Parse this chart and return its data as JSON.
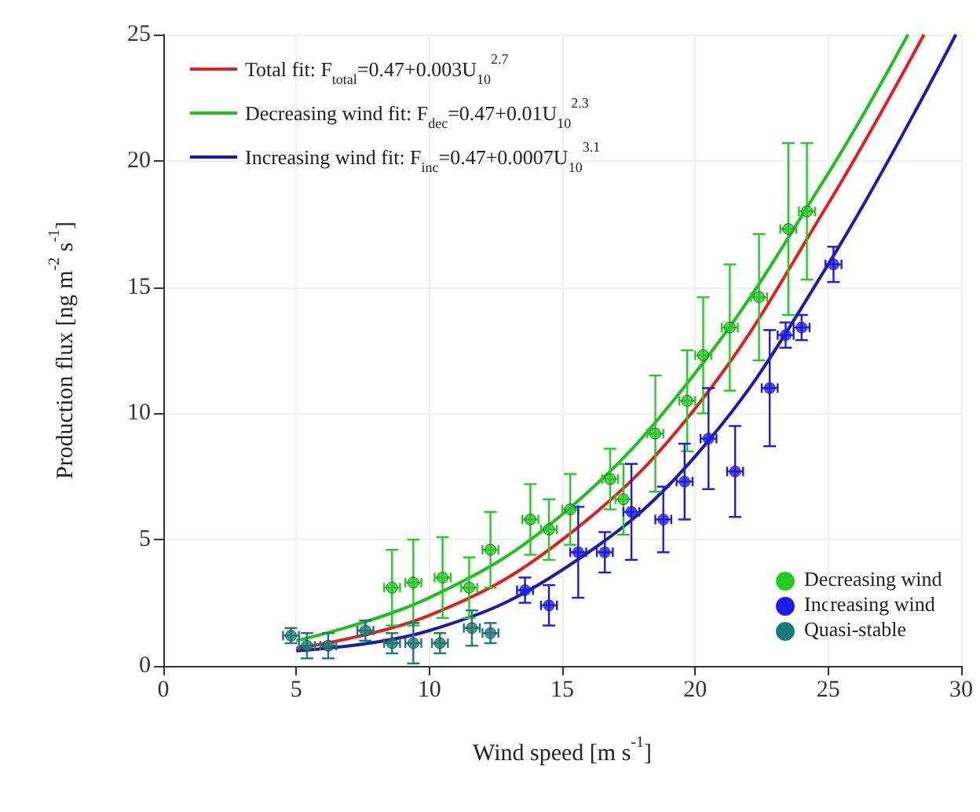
{
  "chart_data": {
    "type": "scatter",
    "xlabel": "Wind speed [m s$^{-1}$]",
    "ylabel": "Production flux [ng m$^{-2}$ s$^{-1}$]",
    "xlim": [
      0,
      30
    ],
    "xticks": [
      0,
      5,
      10,
      15,
      20,
      25,
      30
    ],
    "ylim": [
      0,
      25
    ],
    "yticks": [
      0,
      5,
      10,
      15,
      20,
      25
    ],
    "grid": true,
    "legend": "top left",
    "marker": "circle",
    "series": [
      {
        "name": "Total fit: F$_{total}$=0.47+0.003U$_{10}$$^{2.7}$",
        "type": "line",
        "marker": "none",
        "color": "#e02020",
        "x": [
          5,
          10,
          15,
          20,
          25,
          28.6
        ],
        "values": [
          0.7,
          2.0,
          5.0,
          10.2,
          18.3,
          25
        ]
      },
      {
        "name": "Decreasing wind fit: F$_{dec}$=0.47+0.01U$_{10}$$^{2.3}$",
        "type": "line",
        "marker": "none",
        "color": "#1fbf1f",
        "x": [
          5,
          10,
          15,
          20,
          25,
          28
        ],
        "values": [
          1.0,
          2.7,
          6.0,
          11.6,
          19.5,
          25
        ]
      },
      {
        "name": "Increasing wind fit: F$_{inc}$=0.47+0.0007U$_{10}$$^{3.1}$",
        "type": "line",
        "marker": "none",
        "color": "#1a1ab0",
        "x": [
          5,
          10,
          15,
          20,
          25,
          29.8
        ],
        "values": [
          0.6,
          1.4,
          3.8,
          8.3,
          15.9,
          25
        ]
      },
      {
        "name": "Decreasing wind",
        "color": "#22cc22",
        "x": [
          8.6,
          9.4,
          10.5,
          11.5,
          12.3,
          13.8,
          14.5,
          15.3,
          16.8,
          17.3,
          18.5,
          19.7,
          20.3,
          21.3,
          22.4,
          23.5,
          24.2
        ],
        "values": [
          3.1,
          3.3,
          3.5,
          3.1,
          4.6,
          5.8,
          5.4,
          6.2,
          7.4,
          6.6,
          9.2,
          10.5,
          12.3,
          13.4,
          14.6,
          17.3,
          18.0
        ],
        "errors": [
          1.5,
          1.7,
          1.6,
          1.2,
          1.5,
          1.4,
          1.2,
          1.4,
          1.2,
          1.4,
          2.3,
          2.0,
          2.3,
          2.5,
          2.5,
          3.4,
          2.7
        ],
        "xerrors": [
          0.3,
          0.3,
          0.3,
          0.3,
          0.3,
          0.3,
          0.3,
          0.3,
          0.3,
          0.3,
          0.3,
          0.3,
          0.3,
          0.3,
          0.3,
          0.3,
          0.3
        ]
      },
      {
        "name": "Increasing wind",
        "color": "#1a1aee",
        "x": [
          13.6,
          14.5,
          15.6,
          16.6,
          17.6,
          18.8,
          19.6,
          20.5,
          21.5,
          22.8,
          23.4,
          24.0,
          25.2
        ],
        "values": [
          3.0,
          2.4,
          4.5,
          4.5,
          6.1,
          5.8,
          7.3,
          9.0,
          7.7,
          11.0,
          13.1,
          13.4,
          15.9
        ],
        "errors": [
          0.5,
          0.8,
          1.8,
          0.8,
          1.9,
          1.3,
          1.5,
          2.0,
          1.8,
          2.3,
          0.5,
          0.5,
          0.7
        ],
        "xerrors": [
          0.3,
          0.3,
          0.3,
          0.3,
          0.3,
          0.3,
          0.3,
          0.3,
          0.3,
          0.3,
          0.3,
          0.3,
          0.3
        ]
      },
      {
        "name": "Quasi-stable",
        "color": "#1a7a7a",
        "x": [
          4.8,
          5.4,
          6.2,
          7.6,
          8.6,
          9.4,
          10.4,
          11.6,
          12.3
        ],
        "values": [
          1.2,
          0.8,
          0.8,
          1.4,
          0.9,
          0.9,
          0.9,
          1.5,
          1.3
        ],
        "errors": [
          0.3,
          0.5,
          0.5,
          0.4,
          0.4,
          0.8,
          0.4,
          0.7,
          0.4
        ],
        "xerrors": [
          0.3,
          0.3,
          0.3,
          0.3,
          0.3,
          0.3,
          0.3,
          0.3,
          0.3
        ]
      }
    ]
  }
}
